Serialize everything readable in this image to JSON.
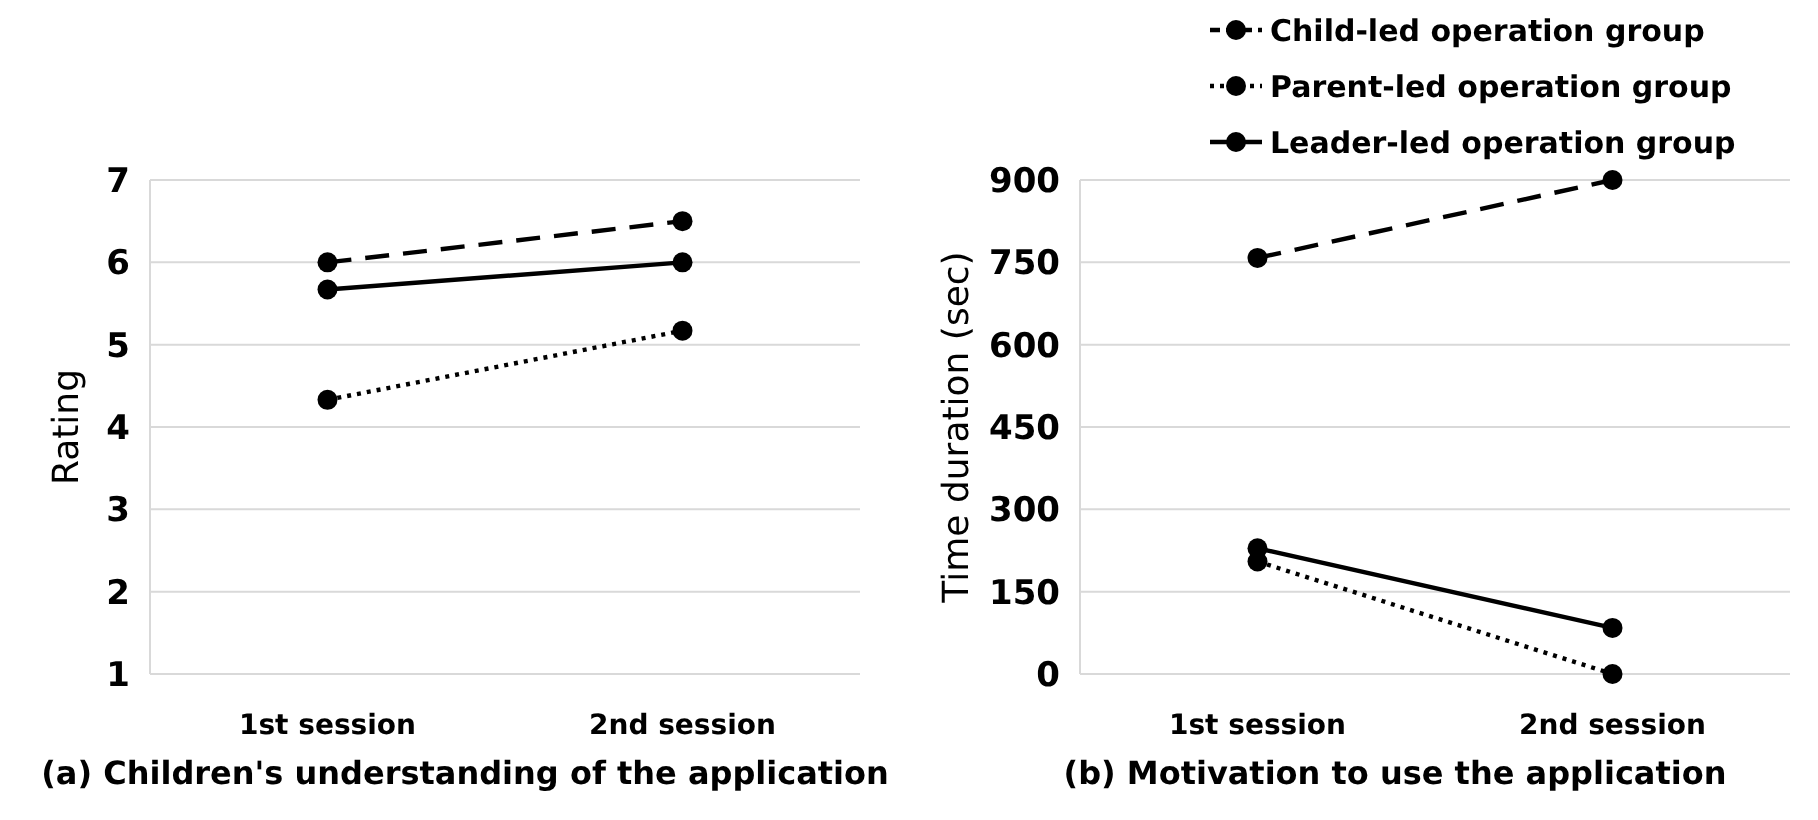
{
  "chart_data": [
    {
      "type": "line",
      "title": "(a) Children's understanding of the application",
      "ylabel": "Rating",
      "categories": [
        "1st session",
        "2nd session"
      ],
      "ylim": [
        1,
        7
      ],
      "yticks": [
        1,
        2,
        3,
        4,
        5,
        6,
        7
      ],
      "grid": "y",
      "marker": "circle",
      "legend": false,
      "series": [
        {
          "color": "#000000",
          "line_style": "dashed",
          "values": [
            6.0,
            6.5
          ]
        },
        {
          "color": "#000000",
          "line_style": "dotted",
          "values": [
            4.33,
            5.17
          ]
        },
        {
          "color": "#000000",
          "line_style": "solid",
          "values": [
            5.67,
            6.0
          ]
        }
      ]
    },
    {
      "type": "line",
      "title": "(b) Motivation to use the application",
      "ylabel": "Time duration (sec)",
      "categories": [
        "1st session",
        "2nd session"
      ],
      "ylim": [
        0,
        900
      ],
      "yticks": [
        0,
        150,
        300,
        450,
        600,
        750,
        900
      ],
      "grid": "y",
      "marker": "circle",
      "legend": "top right",
      "series": [
        {
          "name": "Child-led operation group",
          "color": "#000000",
          "line_style": "dashed",
          "values": [
            758,
            900
          ]
        },
        {
          "name": "Parent-led operation group",
          "color": "#000000",
          "line_style": "dotted",
          "values": [
            205,
            0
          ]
        },
        {
          "name": "Leader-led operation group",
          "color": "#000000",
          "line_style": "solid",
          "values": [
            229,
            84
          ]
        }
      ]
    }
  ]
}
